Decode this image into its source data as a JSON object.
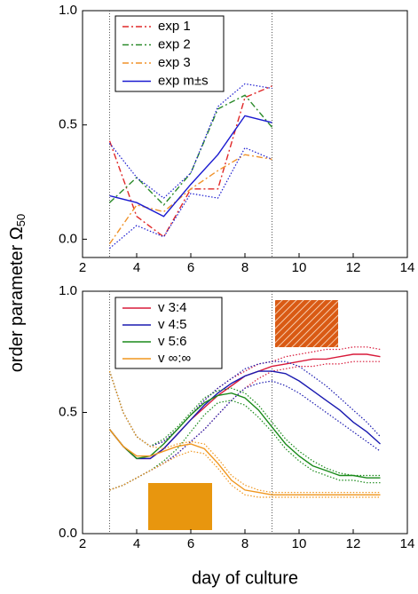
{
  "axis_labels": {
    "x": "day of culture",
    "y": "order parameter Ω",
    "y_sub": "50"
  },
  "chart_data": [
    {
      "type": "line",
      "x": [
        3,
        4,
        5,
        6,
        7,
        8,
        9
      ],
      "xlim": [
        2,
        14
      ],
      "xticks": [
        2,
        4,
        6,
        8,
        10,
        12,
        14
      ],
      "ylim": [
        -0.08,
        1.0
      ],
      "yticks": [
        {
          "value": 0,
          "label": "0.0"
        },
        {
          "value": 0.5,
          "label": "0.5"
        },
        {
          "value": 1,
          "label": "1.0"
        }
      ],
      "vlines": [
        3,
        9
      ],
      "series": [
        {
          "name": "exp 1",
          "color": "#e02828",
          "dash": "dashdot",
          "values": [
            0.43,
            0.1,
            0.01,
            0.22,
            0.22,
            0.62,
            0.67
          ]
        },
        {
          "name": "exp 2",
          "color": "#2a8a2a",
          "dash": "dashdot",
          "values": [
            0.16,
            0.27,
            0.15,
            0.29,
            0.57,
            0.63,
            0.49
          ]
        },
        {
          "name": "exp 3",
          "color": "#f0922a",
          "dash": "dashdot",
          "values": [
            -0.02,
            0.15,
            0.12,
            0.22,
            0.3,
            0.37,
            0.35
          ]
        },
        {
          "name": "exp m±s",
          "color": "#1a1ad0",
          "dash": "solid",
          "values": [
            0.19,
            0.16,
            0.1,
            0.24,
            0.37,
            0.54,
            0.51
          ],
          "upper": [
            0.42,
            0.27,
            0.18,
            0.29,
            0.58,
            0.68,
            0.66
          ],
          "lower": [
            -0.04,
            0.06,
            0.01,
            0.2,
            0.18,
            0.4,
            0.35
          ]
        }
      ]
    },
    {
      "type": "line",
      "x": [
        3,
        3.5,
        4,
        4.5,
        5,
        5.5,
        6,
        6.5,
        7,
        7.5,
        8,
        8.5,
        9,
        9.5,
        10,
        10.5,
        11,
        11.5,
        12,
        12.5,
        13
      ],
      "xlim": [
        2,
        14
      ],
      "xticks": [
        2,
        4,
        6,
        8,
        10,
        12,
        14
      ],
      "ylim": [
        0,
        1.0
      ],
      "yticks": [
        {
          "value": 0,
          "label": "0.0"
        },
        {
          "value": 0.5,
          "label": "0.5"
        },
        {
          "value": 1,
          "label": "1.0"
        }
      ],
      "vlines": [
        3,
        9
      ],
      "series": [
        {
          "name": "v 3:4",
          "color": "#d81a3a",
          "dash": "solid",
          "values": [
            0.43,
            0.36,
            0.31,
            0.31,
            0.35,
            0.41,
            0.47,
            0.52,
            0.57,
            0.61,
            0.65,
            0.67,
            0.69,
            0.7,
            0.71,
            0.72,
            0.72,
            0.73,
            0.74,
            0.74,
            0.73
          ],
          "upper": [
            0.67,
            0.5,
            0.4,
            0.36,
            0.38,
            0.43,
            0.49,
            0.55,
            0.6,
            0.64,
            0.67,
            0.7,
            0.71,
            0.73,
            0.74,
            0.75,
            0.76,
            0.76,
            0.77,
            0.77,
            0.76
          ],
          "lower": [
            0.18,
            0.2,
            0.23,
            0.26,
            0.29,
            0.33,
            0.38,
            0.43,
            0.49,
            0.55,
            0.6,
            0.64,
            0.67,
            0.68,
            0.69,
            0.69,
            0.7,
            0.7,
            0.71,
            0.71,
            0.71
          ]
        },
        {
          "name": "v 4:5",
          "color": "#1a1ab0",
          "dash": "solid",
          "values": [
            0.43,
            0.36,
            0.31,
            0.31,
            0.35,
            0.41,
            0.47,
            0.53,
            0.58,
            0.62,
            0.65,
            0.67,
            0.67,
            0.66,
            0.63,
            0.59,
            0.55,
            0.51,
            0.46,
            0.42,
            0.37
          ],
          "upper": [
            0.67,
            0.5,
            0.4,
            0.36,
            0.38,
            0.43,
            0.49,
            0.55,
            0.6,
            0.64,
            0.68,
            0.7,
            0.71,
            0.71,
            0.69,
            0.65,
            0.61,
            0.56,
            0.51,
            0.46,
            0.4
          ],
          "lower": [
            0.18,
            0.2,
            0.23,
            0.26,
            0.29,
            0.33,
            0.38,
            0.43,
            0.49,
            0.55,
            0.6,
            0.62,
            0.63,
            0.61,
            0.58,
            0.54,
            0.5,
            0.46,
            0.42,
            0.38,
            0.34
          ]
        },
        {
          "name": "v 5:6",
          "color": "#1a8a1a",
          "dash": "solid",
          "values": [
            0.43,
            0.36,
            0.31,
            0.32,
            0.37,
            0.43,
            0.49,
            0.54,
            0.57,
            0.58,
            0.56,
            0.51,
            0.44,
            0.37,
            0.32,
            0.28,
            0.26,
            0.24,
            0.24,
            0.23,
            0.23
          ],
          "upper": [
            0.67,
            0.5,
            0.4,
            0.36,
            0.39,
            0.44,
            0.5,
            0.56,
            0.59,
            0.6,
            0.58,
            0.53,
            0.46,
            0.39,
            0.34,
            0.3,
            0.27,
            0.25,
            0.24,
            0.24,
            0.24
          ],
          "lower": [
            0.18,
            0.2,
            0.23,
            0.26,
            0.3,
            0.35,
            0.42,
            0.49,
            0.54,
            0.55,
            0.53,
            0.48,
            0.42,
            0.35,
            0.3,
            0.26,
            0.24,
            0.22,
            0.22,
            0.21,
            0.21
          ]
        },
        {
          "name": "v ∞:∞",
          "color": "#f0961e",
          "dash": "solid",
          "values": [
            0.43,
            0.36,
            0.32,
            0.32,
            0.34,
            0.36,
            0.37,
            0.35,
            0.29,
            0.22,
            0.18,
            0.17,
            0.16,
            0.16,
            0.16,
            0.16,
            0.16,
            0.16,
            0.16,
            0.16,
            0.16
          ],
          "upper": [
            0.67,
            0.5,
            0.4,
            0.36,
            0.35,
            0.37,
            0.38,
            0.37,
            0.31,
            0.24,
            0.2,
            0.18,
            0.17,
            0.17,
            0.17,
            0.17,
            0.17,
            0.17,
            0.17,
            0.17,
            0.17
          ],
          "lower": [
            0.18,
            0.2,
            0.23,
            0.26,
            0.29,
            0.32,
            0.34,
            0.33,
            0.27,
            0.2,
            0.16,
            0.15,
            0.15,
            0.15,
            0.15,
            0.15,
            0.15,
            0.15,
            0.15,
            0.15,
            0.15
          ]
        }
      ]
    }
  ]
}
